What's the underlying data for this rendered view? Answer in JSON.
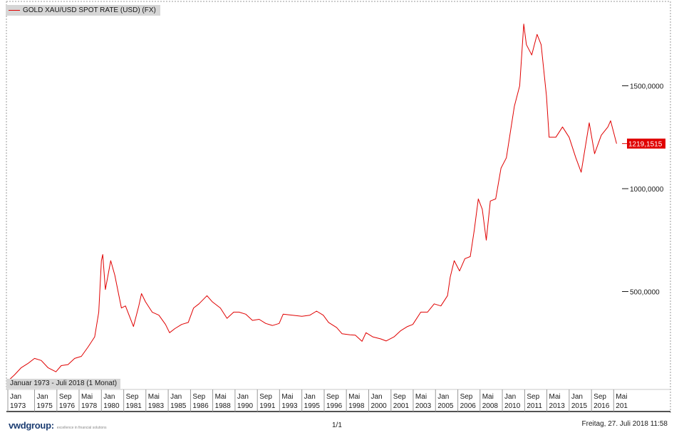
{
  "chart_data": {
    "type": "line",
    "title": "GOLD XAU/USD SPOT RATE (USD) (FX)",
    "date_range": "Januar 1973 - Juli 2018 (1 Monat)",
    "series": [
      {
        "name": "GOLD XAU/USD SPOT RATE (USD) (FX)",
        "color": "#e00000",
        "points": [
          [
            1973.0,
            65
          ],
          [
            1973.5,
            95
          ],
          [
            1974.0,
            130
          ],
          [
            1974.5,
            150
          ],
          [
            1975.0,
            175
          ],
          [
            1975.5,
            165
          ],
          [
            1976.0,
            130
          ],
          [
            1976.6,
            110
          ],
          [
            1977.0,
            140
          ],
          [
            1977.5,
            145
          ],
          [
            1978.0,
            175
          ],
          [
            1978.5,
            185
          ],
          [
            1979.0,
            230
          ],
          [
            1979.5,
            280
          ],
          [
            1979.8,
            400
          ],
          [
            1980.0,
            650
          ],
          [
            1980.1,
            680
          ],
          [
            1980.3,
            510
          ],
          [
            1980.7,
            650
          ],
          [
            1981.0,
            580
          ],
          [
            1981.5,
            420
          ],
          [
            1981.8,
            430
          ],
          [
            1982.4,
            330
          ],
          [
            1982.8,
            430
          ],
          [
            1983.0,
            490
          ],
          [
            1983.3,
            450
          ],
          [
            1983.8,
            400
          ],
          [
            1984.3,
            385
          ],
          [
            1984.8,
            340
          ],
          [
            1985.1,
            300
          ],
          [
            1985.5,
            320
          ],
          [
            1986.0,
            340
          ],
          [
            1986.5,
            350
          ],
          [
            1986.9,
            420
          ],
          [
            1987.3,
            440
          ],
          [
            1987.9,
            480
          ],
          [
            1988.3,
            450
          ],
          [
            1988.9,
            420
          ],
          [
            1989.4,
            370
          ],
          [
            1989.9,
            400
          ],
          [
            1990.3,
            400
          ],
          [
            1990.8,
            390
          ],
          [
            1991.3,
            360
          ],
          [
            1991.8,
            365
          ],
          [
            1992.3,
            345
          ],
          [
            1992.8,
            335
          ],
          [
            1993.3,
            345
          ],
          [
            1993.6,
            390
          ],
          [
            1994.3,
            385
          ],
          [
            1995.0,
            380
          ],
          [
            1995.6,
            385
          ],
          [
            1996.1,
            405
          ],
          [
            1996.6,
            385
          ],
          [
            1997.0,
            350
          ],
          [
            1997.6,
            325
          ],
          [
            1998.0,
            295
          ],
          [
            1998.6,
            290
          ],
          [
            1999.0,
            288
          ],
          [
            1999.5,
            258
          ],
          [
            1999.8,
            300
          ],
          [
            2000.3,
            280
          ],
          [
            2000.9,
            270
          ],
          [
            2001.3,
            260
          ],
          [
            2001.9,
            280
          ],
          [
            2002.4,
            310
          ],
          [
            2002.9,
            330
          ],
          [
            2003.3,
            340
          ],
          [
            2003.9,
            400
          ],
          [
            2004.4,
            400
          ],
          [
            2004.9,
            440
          ],
          [
            2005.4,
            430
          ],
          [
            2005.9,
            480
          ],
          [
            2006.1,
            570
          ],
          [
            2006.4,
            650
          ],
          [
            2006.8,
            600
          ],
          [
            2007.2,
            660
          ],
          [
            2007.6,
            670
          ],
          [
            2007.9,
            800
          ],
          [
            2008.2,
            950
          ],
          [
            2008.5,
            900
          ],
          [
            2008.8,
            750
          ],
          [
            2009.1,
            940
          ],
          [
            2009.5,
            950
          ],
          [
            2009.9,
            1100
          ],
          [
            2010.3,
            1150
          ],
          [
            2010.9,
            1400
          ],
          [
            2011.3,
            1500
          ],
          [
            2011.6,
            1800
          ],
          [
            2011.8,
            1700
          ],
          [
            2012.2,
            1650
          ],
          [
            2012.6,
            1750
          ],
          [
            2012.9,
            1700
          ],
          [
            2013.3,
            1450
          ],
          [
            2013.5,
            1250
          ],
          [
            2014.0,
            1250
          ],
          [
            2014.5,
            1300
          ],
          [
            2015.0,
            1250
          ],
          [
            2015.5,
            1150
          ],
          [
            2015.9,
            1080
          ],
          [
            2016.5,
            1320
          ],
          [
            2016.9,
            1170
          ],
          [
            2017.4,
            1260
          ],
          [
            2017.9,
            1300
          ],
          [
            2018.1,
            1330
          ],
          [
            2018.55,
            1219.1515
          ]
        ]
      }
    ],
    "y_axis": {
      "position": "right",
      "ticks": [
        1500,
        1000,
        500
      ],
      "tick_labels": [
        "1500,0000",
        "1000,0000",
        "500,0000"
      ]
    },
    "last_value": 1219.1515,
    "last_value_label": "1219,1515",
    "x_axis": {
      "ticks": [
        {
          "top": "Jan",
          "bottom": "1973",
          "x": 1973.0
        },
        {
          "top": "Jan",
          "bottom": "1975",
          "x": 1975.0
        },
        {
          "top": "Sep",
          "bottom": "1976",
          "x": 1976.67
        },
        {
          "top": "Mai",
          "bottom": "1978",
          "x": 1978.33
        },
        {
          "top": "Jan",
          "bottom": "1980",
          "x": 1980.0
        },
        {
          "top": "Sep",
          "bottom": "1981",
          "x": 1981.67
        },
        {
          "top": "Mai",
          "bottom": "1983",
          "x": 1983.33
        },
        {
          "top": "Jan",
          "bottom": "1985",
          "x": 1985.0
        },
        {
          "top": "Sep",
          "bottom": "1986",
          "x": 1986.67
        },
        {
          "top": "Mai",
          "bottom": "1988",
          "x": 1988.33
        },
        {
          "top": "Jan",
          "bottom": "1990",
          "x": 1990.0
        },
        {
          "top": "Sep",
          "bottom": "1991",
          "x": 1991.67
        },
        {
          "top": "Mai",
          "bottom": "1993",
          "x": 1993.33
        },
        {
          "top": "Jan",
          "bottom": "1995",
          "x": 1995.0
        },
        {
          "top": "Sep",
          "bottom": "1996",
          "x": 1996.67
        },
        {
          "top": "Mai",
          "bottom": "1998",
          "x": 1998.33
        },
        {
          "top": "Jan",
          "bottom": "2000",
          "x": 2000.0
        },
        {
          "top": "Sep",
          "bottom": "2001",
          "x": 2001.67
        },
        {
          "top": "Mai",
          "bottom": "2003",
          "x": 2003.33
        },
        {
          "top": "Jan",
          "bottom": "2005",
          "x": 2005.0
        },
        {
          "top": "Sep",
          "bottom": "2006",
          "x": 2006.67
        },
        {
          "top": "Mai",
          "bottom": "2008",
          "x": 2008.33
        },
        {
          "top": "Jan",
          "bottom": "2010",
          "x": 2010.0
        },
        {
          "top": "Sep",
          "bottom": "2011",
          "x": 2011.67
        },
        {
          "top": "Mai",
          "bottom": "2013",
          "x": 2013.33
        },
        {
          "top": "Jan",
          "bottom": "2015",
          "x": 2015.0
        },
        {
          "top": "Sep",
          "bottom": "2016",
          "x": 2016.67
        },
        {
          "top": "Mai",
          "bottom": "201",
          "x": 2018.33
        }
      ]
    },
    "grid": false,
    "legend": "top-left"
  },
  "footer": {
    "brand": "vwdgroup:",
    "brand_tagline": "excellence in financial solutions",
    "page": "1/1",
    "timestamp": "Freitag, 27. Juli 2018 11:58"
  }
}
